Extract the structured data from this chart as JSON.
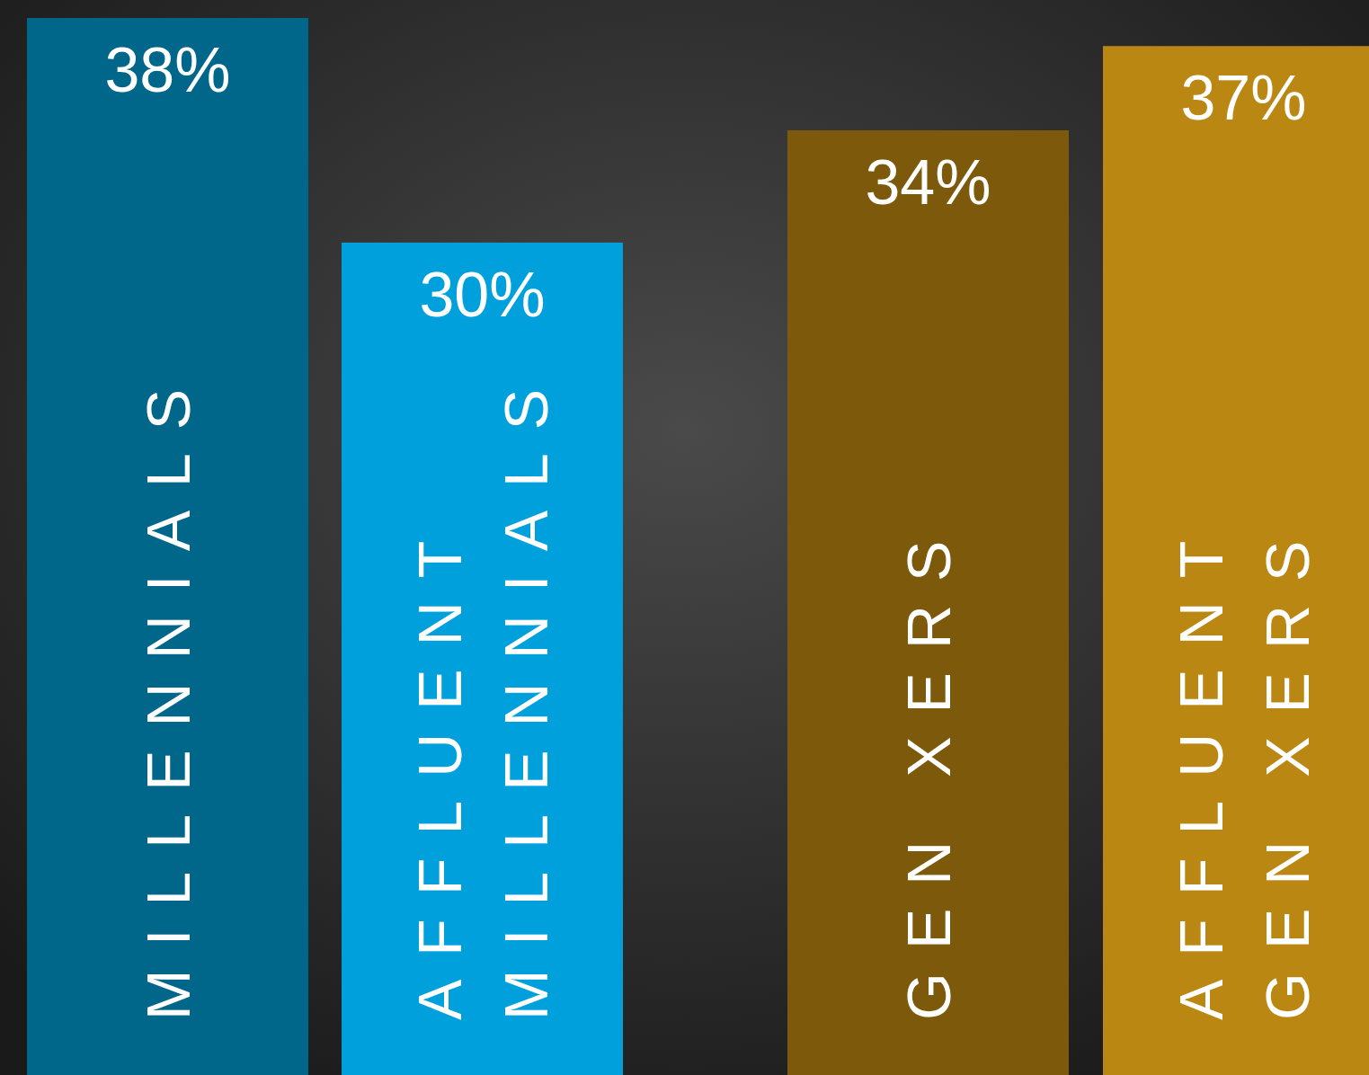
{
  "chart_data": {
    "type": "bar",
    "categories": [
      "MILLENNIALS",
      "AFFLUENT\nMILLENNIALS",
      "GEN XERS",
      "AFFLUENT\nGEN XERS"
    ],
    "values": [
      38,
      30,
      34,
      37
    ],
    "colors": [
      "#00678a",
      "#00a0dc",
      "#7d5a0b",
      "#b98712"
    ],
    "value_labels": [
      "38%",
      "30%",
      "34%",
      "37%"
    ]
  }
}
